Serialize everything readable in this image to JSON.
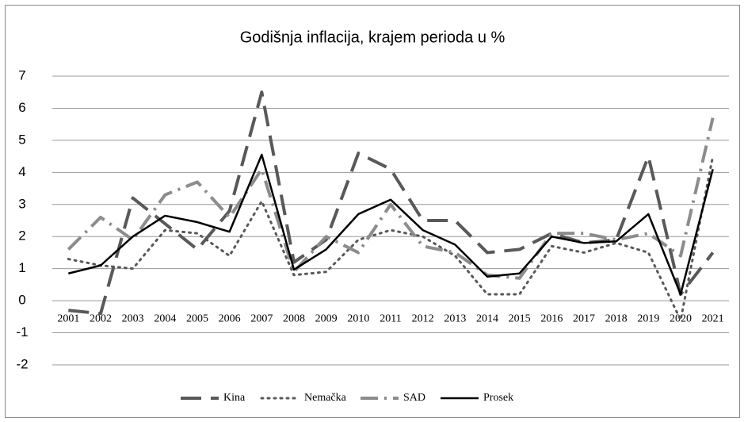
{
  "chart_data": {
    "type": "line",
    "title": "Godišnja inflacija, krajem perioda u %",
    "categories": [
      "2001",
      "2002",
      "2003",
      "2004",
      "2005",
      "2006",
      "2007",
      "2008",
      "2009",
      "2010",
      "2011",
      "2012",
      "2013",
      "2014",
      "2015",
      "2016",
      "2017",
      "2018",
      "2019",
      "2020",
      "2021"
    ],
    "series": [
      {
        "name": "Kina",
        "color": "#595959",
        "dash": "dash",
        "values": [
          -0.3,
          -0.4,
          3.2,
          2.4,
          1.6,
          2.8,
          6.5,
          1.2,
          1.9,
          4.6,
          4.1,
          2.5,
          2.5,
          1.5,
          1.6,
          2.1,
          1.8,
          1.9,
          4.5,
          0.2,
          1.5
        ]
      },
      {
        "name": "Nemačka",
        "color": "#595959",
        "dash": "dot",
        "values": [
          1.3,
          1.1,
          1.0,
          2.2,
          2.1,
          1.4,
          3.1,
          0.8,
          0.9,
          1.9,
          2.2,
          2.0,
          1.4,
          0.2,
          0.2,
          1.7,
          1.5,
          1.8,
          1.5,
          -0.6,
          4.5
        ]
      },
      {
        "name": "SAD",
        "color": "#8c8c8c",
        "dash": "dashdot",
        "values": [
          1.6,
          2.6,
          1.9,
          3.3,
          3.7,
          2.6,
          4.1,
          0.9,
          2.0,
          1.5,
          3.0,
          1.7,
          1.5,
          0.8,
          0.7,
          2.1,
          2.1,
          1.9,
          2.1,
          1.4,
          5.7
        ]
      },
      {
        "name": "Prosek",
        "color": "#000000",
        "dash": "solid",
        "values": [
          0.85,
          1.1,
          2.0,
          2.65,
          2.45,
          2.15,
          4.55,
          0.97,
          1.6,
          2.7,
          3.15,
          2.2,
          1.75,
          0.75,
          0.85,
          2.0,
          1.8,
          1.85,
          2.7,
          0.2,
          4.1
        ]
      }
    ],
    "ylim": [
      -2,
      7
    ],
    "yticks": [
      -2,
      -1,
      0,
      1,
      2,
      3,
      4,
      5,
      6,
      7
    ],
    "grid": true,
    "legend": "bottom"
  }
}
